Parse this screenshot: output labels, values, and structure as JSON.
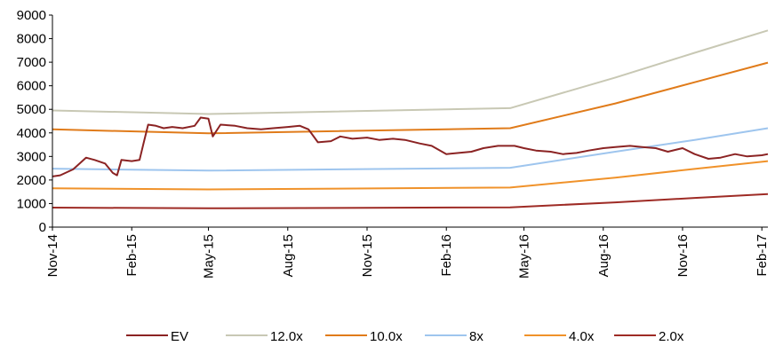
{
  "chart_data": {
    "type": "line",
    "title": "",
    "xlabel": "",
    "ylabel": "",
    "ylim": [
      0,
      9000
    ],
    "yticks": [
      0,
      1000,
      2000,
      3000,
      4000,
      5000,
      6000,
      7000,
      8000,
      9000
    ],
    "xlim": [
      "2014-11-01",
      "2017-02-08"
    ],
    "xticks": [
      "Nov-14",
      "Feb-15",
      "May-15",
      "Aug-15",
      "Nov-15",
      "Feb-16",
      "May-16",
      "Aug-16",
      "Nov-16",
      "Feb-17"
    ],
    "grid": false,
    "legend_position": "bottom",
    "series": [
      {
        "name": "EV",
        "color": "#8b2323",
        "x": [
          "2014-11-01",
          "2014-11-10",
          "2014-11-25",
          "2014-12-10",
          "2014-12-20",
          "2015-01-01",
          "2015-01-10",
          "2015-01-15",
          "2015-01-20",
          "2015-02-01",
          "2015-02-10",
          "2015-02-15",
          "2015-02-20",
          "2015-03-01",
          "2015-03-10",
          "2015-03-20",
          "2015-04-01",
          "2015-04-15",
          "2015-04-22",
          "2015-05-01",
          "2015-05-06",
          "2015-05-15",
          "2015-06-01",
          "2015-06-15",
          "2015-07-01",
          "2015-07-15",
          "2015-08-01",
          "2015-08-15",
          "2015-08-25",
          "2015-09-05",
          "2015-09-20",
          "2015-10-01",
          "2015-10-15",
          "2015-11-01",
          "2015-11-15",
          "2015-12-01",
          "2015-12-15",
          "2016-01-01",
          "2016-01-15",
          "2016-02-01",
          "2016-02-15",
          "2016-03-01",
          "2016-03-15",
          "2016-04-01",
          "2016-04-20",
          "2016-05-01",
          "2016-05-15",
          "2016-06-01",
          "2016-06-15",
          "2016-07-01",
          "2016-07-15",
          "2016-08-01",
          "2016-08-15",
          "2016-09-01",
          "2016-09-15",
          "2016-10-01",
          "2016-10-15",
          "2016-11-01",
          "2016-11-15",
          "2016-12-01",
          "2016-12-15",
          "2017-01-01",
          "2017-01-15",
          "2017-02-01",
          "2017-02-08"
        ],
        "values": [
          2150,
          2200,
          2450,
          2950,
          2850,
          2700,
          2300,
          2200,
          2850,
          2800,
          2850,
          3600,
          4350,
          4300,
          4200,
          4250,
          4200,
          4300,
          4650,
          4600,
          3850,
          4350,
          4300,
          4200,
          4150,
          4200,
          4250,
          4300,
          4150,
          3600,
          3650,
          3850,
          3750,
          3800,
          3700,
          3750,
          3700,
          3550,
          3450,
          3100,
          3150,
          3200,
          3350,
          3450,
          3450,
          3350,
          3250,
          3200,
          3100,
          3150,
          3250,
          3350,
          3400,
          3450,
          3400,
          3350,
          3200,
          3350,
          3100,
          2900,
          2950,
          3100,
          3000,
          3050,
          3100
        ]
      },
      {
        "name": "12.0x",
        "color": "#c8c8b4",
        "x": [
          "2014-11-01",
          "2015-05-01",
          "2016-04-15",
          "2016-08-15",
          "2016-11-15",
          "2017-02-08"
        ],
        "values": [
          4950,
          4800,
          5050,
          6350,
          7400,
          8350
        ]
      },
      {
        "name": "10.0x",
        "color": "#e07b1a",
        "x": [
          "2014-11-01",
          "2015-05-01",
          "2016-04-15",
          "2016-08-15",
          "2016-11-15",
          "2017-02-08"
        ],
        "values": [
          4150,
          3980,
          4200,
          5250,
          6150,
          6980
        ]
      },
      {
        "name": "8x",
        "color": "#9ec5ee",
        "x": [
          "2014-11-01",
          "2015-05-01",
          "2016-04-15",
          "2016-08-15",
          "2016-11-15",
          "2017-02-08"
        ],
        "values": [
          2480,
          2400,
          2520,
          3200,
          3700,
          4200
        ]
      },
      {
        "name": "4.0x",
        "color": "#f0922a",
        "x": [
          "2014-11-01",
          "2015-05-01",
          "2016-04-15",
          "2016-08-15",
          "2016-11-15",
          "2017-02-08"
        ],
        "values": [
          1650,
          1600,
          1680,
          2100,
          2470,
          2800
        ]
      },
      {
        "name": "2.0x",
        "color": "#9e2b25",
        "x": [
          "2014-11-01",
          "2015-05-01",
          "2016-04-15",
          "2016-08-15",
          "2016-11-15",
          "2017-02-08"
        ],
        "values": [
          830,
          800,
          840,
          1050,
          1240,
          1400
        ]
      }
    ]
  }
}
